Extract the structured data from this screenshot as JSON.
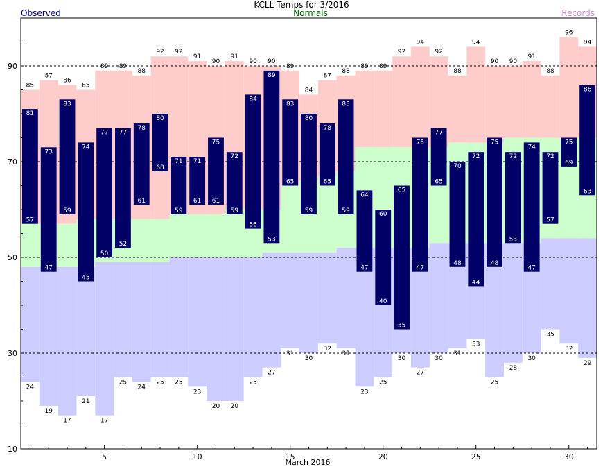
{
  "chart_data": {
    "type": "bar",
    "title": "KCLL Temps for  3/2016",
    "legend": {
      "observed": "Observed",
      "normals": "Normals",
      "records": "Records",
      "placement": "top"
    },
    "xlabel": "March 2016",
    "ylabel": "",
    "x_ticks": [
      5,
      10,
      15,
      20,
      25,
      30
    ],
    "y_ticks": [
      10,
      30,
      50,
      70,
      90
    ],
    "gridlines_at": [
      30,
      50,
      70,
      90
    ],
    "xlim": [
      0.5,
      31.5
    ],
    "ylim": [
      10,
      100
    ],
    "days": [
      1,
      2,
      3,
      4,
      5,
      6,
      7,
      8,
      9,
      10,
      11,
      12,
      13,
      14,
      15,
      16,
      17,
      18,
      19,
      20,
      21,
      22,
      23,
      24,
      25,
      26,
      27,
      28,
      29,
      30,
      31
    ],
    "series": [
      {
        "name": "Observed",
        "kind": "range",
        "high": [
          81,
          73,
          83,
          74,
          77,
          77,
          78,
          80,
          71,
          71,
          75,
          72,
          84,
          89,
          83,
          80,
          78,
          83,
          64,
          60,
          65,
          75,
          77,
          70,
          72,
          75,
          72,
          74,
          72,
          75,
          86
        ],
        "low": [
          57,
          47,
          59,
          45,
          50,
          52,
          61,
          68,
          59,
          61,
          61,
          59,
          56,
          53,
          65,
          59,
          65,
          59,
          47,
          40,
          35,
          47,
          65,
          48,
          44,
          48,
          53,
          47,
          57,
          69,
          63
        ]
      },
      {
        "name": "Normals",
        "kind": "range",
        "high": [
          57,
          57,
          57,
          58,
          58,
          58,
          58,
          58,
          59,
          59,
          59,
          60,
          60,
          60,
          65,
          66,
          67,
          68,
          73,
          73,
          73,
          73,
          73,
          74,
          74,
          74,
          75,
          75,
          75,
          75,
          75
        ],
        "low": [
          48,
          48,
          48,
          48,
          49,
          49,
          49,
          49,
          50,
          50,
          50,
          50,
          50,
          51,
          51,
          51,
          51,
          52,
          52,
          52,
          52,
          52,
          53,
          53,
          53,
          53,
          53,
          53,
          54,
          54,
          54
        ]
      },
      {
        "name": "Records",
        "kind": "range",
        "high": [
          85,
          87,
          86,
          85,
          89,
          89,
          88,
          92,
          92,
          91,
          90,
          91,
          90,
          90,
          89,
          84,
          87,
          88,
          89,
          89,
          92,
          94,
          92,
          88,
          94,
          90,
          90,
          91,
          88,
          96,
          94
        ],
        "low": [
          24,
          19,
          17,
          21,
          17,
          25,
          24,
          25,
          25,
          23,
          20,
          20,
          25,
          27,
          31,
          30,
          32,
          31,
          23,
          25,
          30,
          27,
          30,
          31,
          33,
          25,
          28,
          30,
          35,
          32,
          29
        ]
      }
    ],
    "colors": {
      "observed": "#000066",
      "observed_label": "#ffffff",
      "record_high_area": "#ffcccc",
      "normal_area": "#ccffcc",
      "record_low_area": "#ccccff",
      "legend_observed": "#000080",
      "legend_normals": "#006600",
      "legend_records": "#cc88cc"
    }
  }
}
